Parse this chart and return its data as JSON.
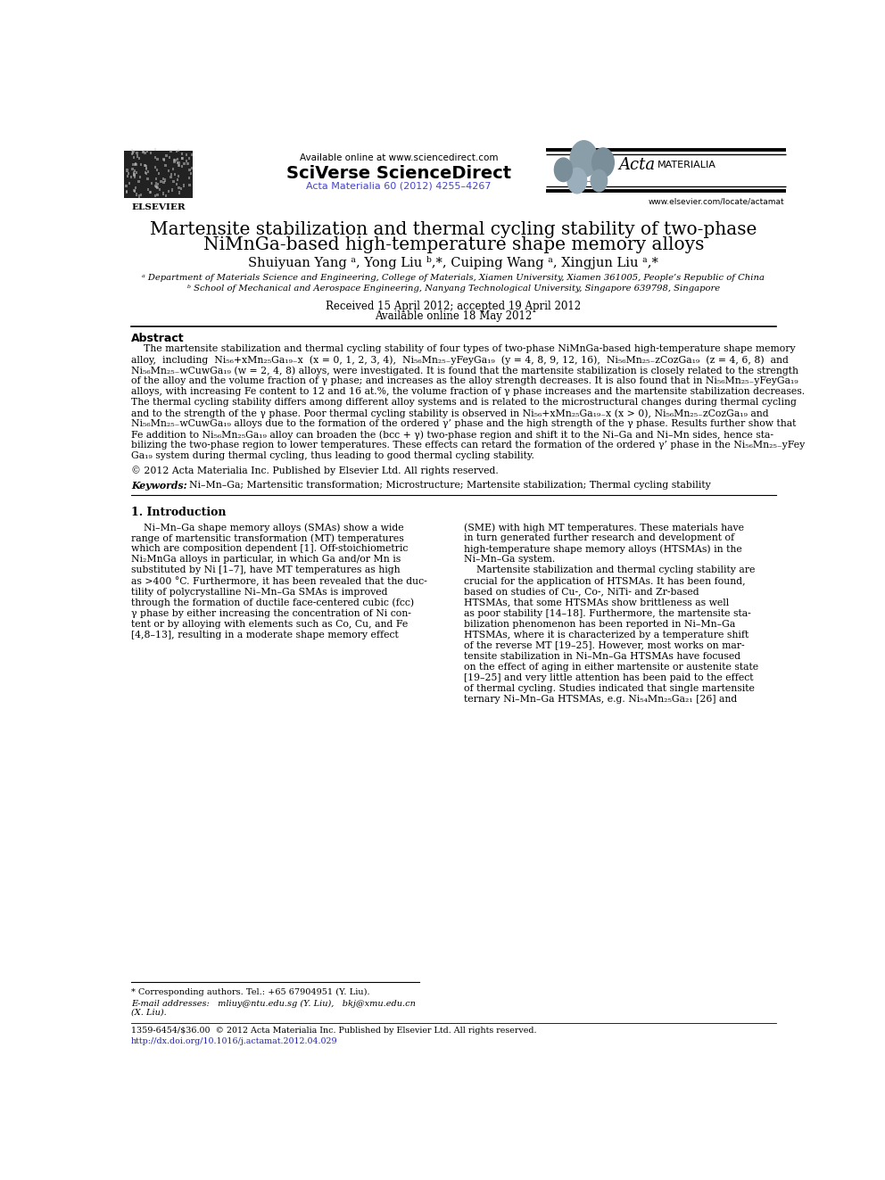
{
  "page_width": 9.92,
  "page_height": 13.23,
  "bg_color": "#ffffff",
  "header_available_online": "Available online at www.sciencedirect.com",
  "header_sciverse": "SciVerse ScienceDirect",
  "header_journal_ref": "Acta Materialia 60 (2012) 4255–4267",
  "header_elsevier_text": "ELSEVIER",
  "header_website": "www.elsevier.com/locate/actamat",
  "title_line1": "Martensite stabilization and thermal cycling stability of two-phase",
  "title_line2": "NiMnGa-based high-temperature shape memory alloys",
  "authors": "Shuiyuan Yang ᵃ, Yong Liu ᵇ,*, Cuiping Wang ᵃ, Xingjun Liu ᵃ,*",
  "affil_a": "ᵃ Department of Materials Science and Engineering, College of Materials, Xiamen University, Xiamen 361005, People’s Republic of China",
  "affil_b": "ᵇ School of Mechanical and Aerospace Engineering, Nanyang Technological University, Singapore 639798, Singapore",
  "received": "Received 15 April 2012; accepted 19 April 2012",
  "available_online": "Available online 18 May 2012",
  "abstract_title": "Abstract",
  "abstract_lines": [
    "    The martensite stabilization and thermal cycling stability of four types of two-phase NiMnGa-based high-temperature shape memory",
    "alloy,  including  Ni₅₆+xMn₂₅Ga₁₉₋x  (x = 0, 1, 2, 3, 4),  Ni₅₆Mn₂₅₋yFeyGa₁₉  (y = 4, 8, 9, 12, 16),  Ni₅₆Mn₂₅₋zCozGa₁₉  (z = 4, 6, 8)  and",
    "Ni₅₆Mn₂₅₋wCuwGa₁₉ (w = 2, 4, 8) alloys, were investigated. It is found that the martensite stabilization is closely related to the strength",
    "of the alloy and the volume fraction of γ phase; and increases as the alloy strength decreases. It is also found that in Ni₅₆Mn₂₅₋yFeyGa₁₉",
    "alloys, with increasing Fe content to 12 and 16 at.%, the volume fraction of γ phase increases and the martensite stabilization decreases.",
    "The thermal cycling stability differs among different alloy systems and is related to the microstructural changes during thermal cycling",
    "and to the strength of the γ phase. Poor thermal cycling stability is observed in Ni₅₆+xMn₂₅Ga₁₉₋x (x > 0), Ni₅₆Mn₂₅₋zCozGa₁₉ and",
    "Ni₅₆Mn₂₅₋wCuwGa₁₉ alloys due to the formation of the ordered γ’ phase and the high strength of the γ phase. Results further show that",
    "Fe addition to Ni₅₆Mn₂₅Ga₁₉ alloy can broaden the (bcc + γ) two-phase region and shift it to the Ni–Ga and Ni–Mn sides, hence sta-",
    "bilizing the two-phase region to lower temperatures. These effects can retard the formation of the ordered γ’ phase in the Ni₅₆Mn₂₅₋yFey",
    "Ga₁₉ system during thermal cycling, thus leading to good thermal cycling stability."
  ],
  "copyright": "© 2012 Acta Materialia Inc. Published by Elsevier Ltd. All rights reserved.",
  "keywords_label": "Keywords:",
  "keywords_text": "Ni–Mn–Ga; Martensitic transformation; Microstructure; Martensite stabilization; Thermal cycling stability",
  "section1_title": "1. Introduction",
  "col1_lines": [
    "    Ni–Mn–Ga shape memory alloys (SMAs) show a wide",
    "range of martensitic transformation (MT) temperatures",
    "which are composition dependent [1]. Off-stoichiometric",
    "Ni₂MnGa alloys in particular, in which Ga and/or Mn is",
    "substituted by Ni [1–7], have MT temperatures as high",
    "as >400 °C. Furthermore, it has been revealed that the duc-",
    "tility of polycrystalline Ni–Mn–Ga SMAs is improved",
    "through the formation of ductile face-centered cubic (fcc)",
    "γ phase by either increasing the concentration of Ni con-",
    "tent or by alloying with elements such as Co, Cu, and Fe",
    "[4,8–13], resulting in a moderate shape memory effect"
  ],
  "col2_lines": [
    "(SME) with high MT temperatures. These materials have",
    "in turn generated further research and development of",
    "high-temperature shape memory alloys (HTSMAs) in the",
    "Ni–Mn–Ga system.",
    "    Martensite stabilization and thermal cycling stability are",
    "crucial for the application of HTSMAs. It has been found,",
    "based on studies of Cu-, Co-, NiTi- and Zr-based",
    "HTSMAs, that some HTSMAs show brittleness as well",
    "as poor stability [14–18]. Furthermore, the martensite sta-",
    "bilization phenomenon has been reported in Ni–Mn–Ga",
    "HTSMAs, where it is characterized by a temperature shift",
    "of the reverse MT [19–25]. However, most works on mar-",
    "tensite stabilization in Ni–Mn–Ga HTSMAs have focused",
    "on the effect of aging in either martensite or austenite state",
    "[19–25] and very little attention has been paid to the effect",
    "of thermal cycling. Studies indicated that single martensite",
    "ternary Ni–Mn–Ga HTSMAs, e.g. Ni₅₄Mn₂₅Ga₂₁ [26] and"
  ],
  "footnote_star": "* Corresponding authors. Tel.: +65 67904951 (Y. Liu).",
  "footnote_email": "E-mail addresses:   mliuy@ntu.edu.sg (Y. Liu),   bkj@xmu.edu.cn",
  "footnote_email2": "(X. Liu).",
  "footer_issn": "1359-6454/$36.00  © 2012 Acta Materialia Inc. Published by Elsevier Ltd. All rights reserved.",
  "footer_doi": "http://dx.doi.org/10.1016/j.actamat.2012.04.029"
}
